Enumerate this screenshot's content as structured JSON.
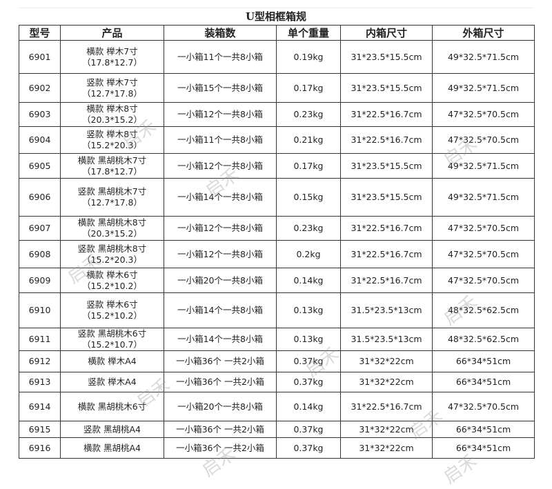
{
  "title": "U型相框箱规",
  "headers": [
    "型号",
    "产品",
    "装箱数",
    "单个重量",
    "内箱尺寸",
    "外箱尺寸"
  ],
  "rows": [
    {
      "model": "6901",
      "product": "横款 榉木7寸",
      "size": "（17.8*12.7）",
      "packing": "一小箱11个一共8小箱",
      "weight": "0.19kg",
      "inner": "31*23.5*15.5cm",
      "outer": "49*32.5*71.5cm"
    },
    {
      "model": "6902",
      "product": "竖款 榉木7寸",
      "size": "（12.7*17.8）",
      "packing": "一小箱15个一共8小箱",
      "weight": "0.17kg",
      "inner": "31*23.5*15.5cm",
      "outer": "49*32.5*71.5cm"
    },
    {
      "model": "6903",
      "product": "横款 榉木8寸",
      "size": "（20.3*15.2）",
      "packing": "一小箱12个一共8小箱",
      "weight": "0.23kg",
      "inner": "31*22.5*16.7cm",
      "outer": "47*32.5*70.5cm"
    },
    {
      "model": "6904",
      "product": "竖款 榉木8寸",
      "size": "（15.2*20.3）",
      "packing": "一小箱11个一共8小箱",
      "weight": "0.21kg",
      "inner": "31*22.5*16.7cm",
      "outer": "47*32.5*70.5cm"
    },
    {
      "model": "6905",
      "product": "横款 黑胡桃木7寸",
      "size": "（17.8*12.7）",
      "packing": "一小箱12个一共8小箱",
      "weight": "0.17kg",
      "inner": "31*23.5*15.5cm",
      "outer": "49*32.5*71.5cm"
    },
    {
      "model": "6906",
      "product": "竖款 黑胡桃木7寸",
      "size": "（12.7*17.8）",
      "packing": "一小箱14个一共8小箱",
      "weight": "0.15kg",
      "inner": "31*23.5*15.5cm",
      "outer": "49*32.5*71.5cm"
    },
    {
      "model": "6907",
      "product": "横款 黑胡桃木8寸",
      "size": "（20.3*15.2）",
      "packing": "一小箱12个一共8小箱",
      "weight": "0.23kg",
      "inner": "31*22.5*16.7cm",
      "outer": "47*32.5*70.5cm"
    },
    {
      "model": "6908",
      "product": "竖款 黑胡桃木8寸",
      "size": "（15.2*20.3）",
      "packing": "一小箱12个一共8小箱",
      "weight": "0.2kg",
      "inner": "31*22.5*16.7cm",
      "outer": "47*32.5*70.5cm"
    },
    {
      "model": "6909",
      "product": "横款 榉木6寸",
      "size": "（15.2*10.2）",
      "packing": "一小箱20个一共8小箱",
      "weight": "0.14kg",
      "inner": "31*22.5*16.7cm",
      "outer": "47*32.5*70.5cm"
    },
    {
      "model": "6910",
      "product": "竖款 榉木6寸",
      "size": "（15.2*10.2）",
      "packing": "一小箱14个一共8小箱",
      "weight": "0.13kg",
      "inner": "31.5*23.5*13cm",
      "outer": "48*32.5*62.5cm"
    },
    {
      "model": "6911",
      "product": "竖款 黑胡桃木6寸",
      "size": "（15.2*10.7）",
      "packing": "一小箱14个一共8小箱",
      "weight": "0.13kg",
      "inner": "31.5*23.5*13cm",
      "outer": "48*32.5*62.5cm"
    },
    {
      "model": "6912",
      "product": "横款 榉木A4",
      "size": "",
      "packing": "一小箱36个 一共2小箱",
      "weight": "0.37kg",
      "inner": "31*32*22cm",
      "outer": "66*34*51cm"
    },
    {
      "model": "6913",
      "product": "竖款 榉木A4",
      "size": "",
      "packing": "一小箱36个 一共2小箱",
      "weight": "0.37kg",
      "inner": "31*32*22cm",
      "outer": "66*34*51cm"
    },
    {
      "model": "6914",
      "product": "横款 黑胡桃木6寸",
      "size": "",
      "packing": "一小箱20个一共8小箱",
      "weight": "0.14kg",
      "inner": "31*22.5*16.7cm",
      "outer": "47*32.5*70.5cm"
    },
    {
      "model": "6915",
      "product": "竖款 黑胡桃A4",
      "size": "",
      "packing": "一小箱36个 一共2小箱",
      "weight": "0.37kg",
      "inner": "31*32*22cm",
      "outer": "66*34*51cm"
    },
    {
      "model": "6916",
      "product": "横款 黑胡桃A4",
      "size": "",
      "packing": "一小箱36个 一共2小箱",
      "weight": "0.37kg",
      "inner": "31*32*22cm",
      "outer": "66*34*51cm"
    }
  ],
  "watermark": "启禾"
}
